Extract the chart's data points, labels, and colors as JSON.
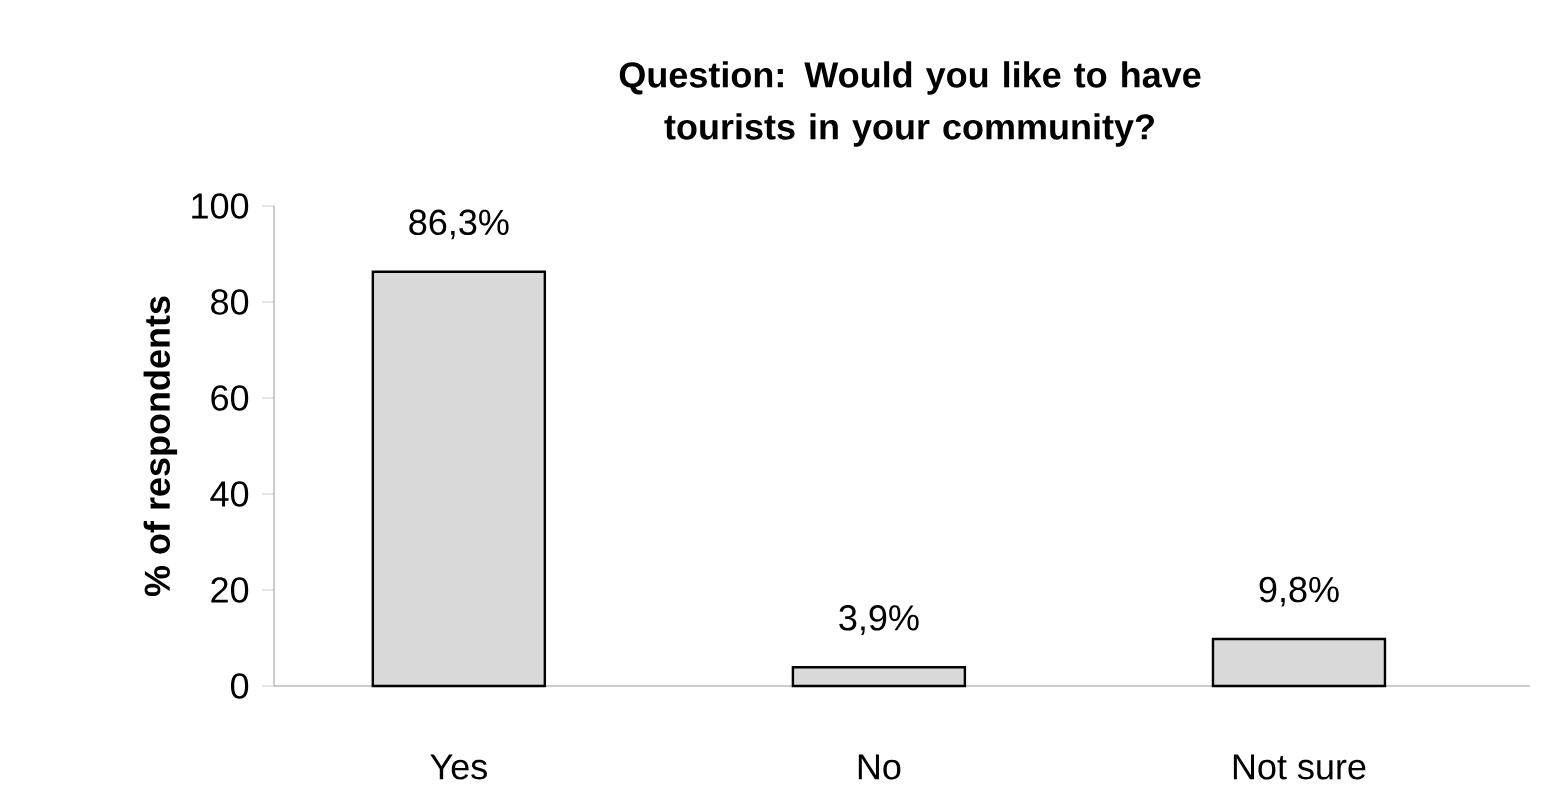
{
  "chart_data": {
    "type": "bar",
    "title": "Question: Would you like to have tourists in your community?",
    "ylabel": "% of respondents",
    "categories": [
      "Yes",
      "No",
      "Not sure"
    ],
    "values": [
      86.3,
      3.9,
      9.8
    ],
    "value_labels": [
      "86,3%",
      "3,9%",
      "9,8%"
    ],
    "color": "#d9d9d9",
    "ylim": [
      0,
      100
    ],
    "yticks": [
      0,
      20,
      40,
      60,
      80,
      100
    ],
    "grid": false
  }
}
